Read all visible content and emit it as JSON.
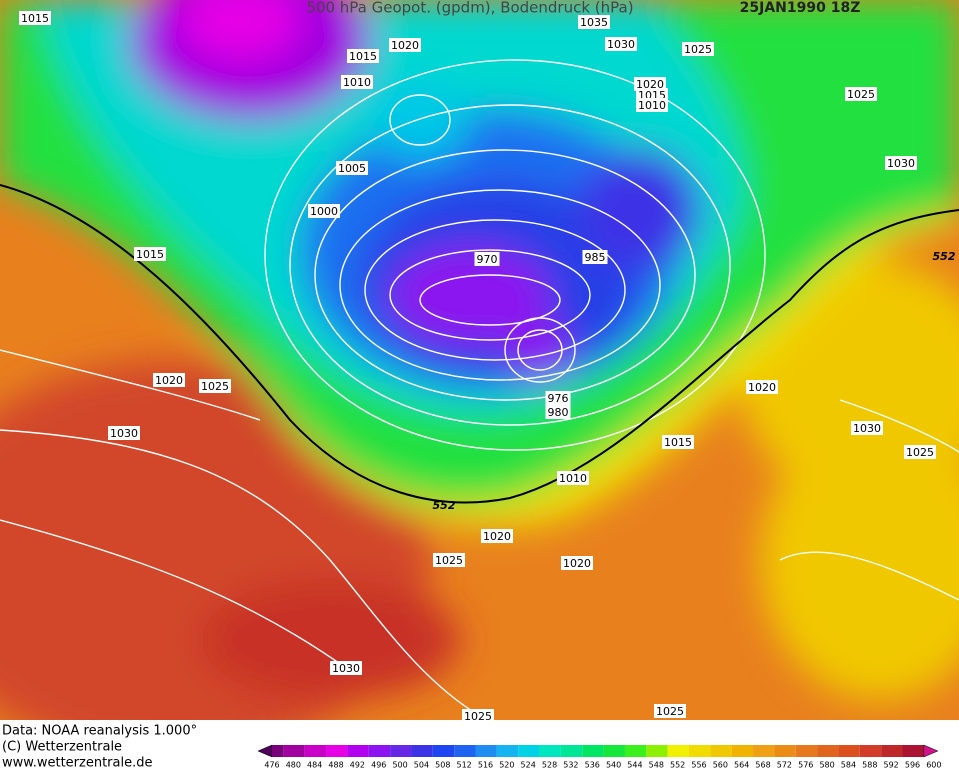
{
  "header": {
    "title": "500 hPa Geopot. (gpdm), Bodendruck (hPa)",
    "date": "25JAN1990 18Z"
  },
  "isobar_labels": [
    "1015",
    "1020",
    "1015",
    "1010",
    "1035",
    "1030",
    "1025",
    "1020",
    "1015",
    "1010",
    "1025",
    "1030",
    "1005",
    "1000",
    "1015",
    "970",
    "985",
    "976",
    "980",
    "1020",
    "1025",
    "1030",
    "1020",
    "1030",
    "1025",
    "1015",
    "1010",
    "1020",
    "1020",
    "1025",
    "1030",
    "1025",
    "1025"
  ],
  "contour_labels": [
    "552",
    "552"
  ],
  "footer": {
    "source": "Data: NOAA reanalysis 1.000°",
    "copyright": "(C) Wetterzentrale",
    "url": "www.wetterzentrale.de"
  },
  "colorbar": {
    "levels": [
      476,
      480,
      484,
      488,
      492,
      496,
      500,
      504,
      508,
      512,
      516,
      520,
      524,
      528,
      532,
      536,
      540,
      544,
      548,
      552,
      556,
      560,
      564,
      568,
      572,
      576,
      580,
      584,
      588,
      592,
      596,
      600
    ],
    "colors": [
      "#50005a",
      "#780078",
      "#a000a0",
      "#c800c8",
      "#e600e6",
      "#b400f0",
      "#8c14f0",
      "#6428e6",
      "#3c32e6",
      "#1e46f0",
      "#1e64f0",
      "#1e8cf0",
      "#14b4f0",
      "#00d2e6",
      "#00e6be",
      "#00e696",
      "#00e664",
      "#14e63c",
      "#3cf01e",
      "#8cf000",
      "#f0f000",
      "#f0dc00",
      "#f0c800",
      "#f0b400",
      "#f0a014",
      "#eb8c14",
      "#e6781e",
      "#e1641e",
      "#dc501e",
      "#d23c28",
      "#be2828",
      "#aa1432",
      "#d2148c"
    ]
  }
}
